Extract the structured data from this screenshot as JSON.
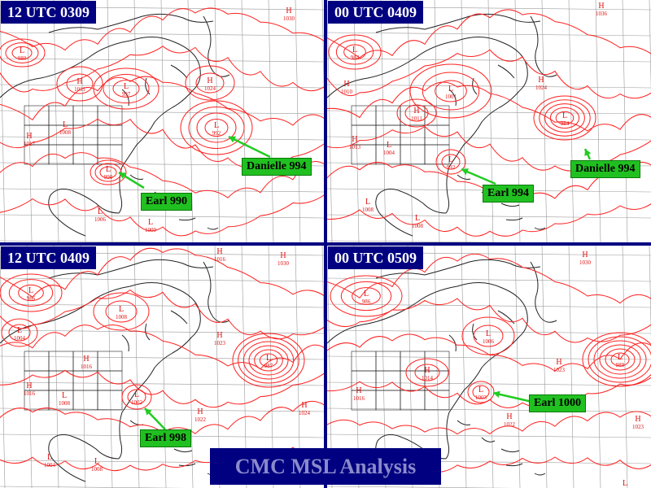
{
  "title": "CMC MSL Analysis",
  "colors": {
    "isobar": "#ff2020",
    "label_red": "#e01010",
    "frame": "#000080",
    "callout": "#21c021",
    "arrow": "#22cc22",
    "coast": "#222222",
    "grid": "#999999"
  },
  "panels": [
    {
      "id": "p1",
      "time_label": "12 UTC 0309",
      "pressure_centers": [
        {
          "type": "L",
          "value": "980"
        },
        {
          "type": "H",
          "value": "1011"
        },
        {
          "type": "L",
          "value": "997"
        },
        {
          "type": "H",
          "value": "1024"
        },
        {
          "type": "H",
          "value": "1030"
        },
        {
          "type": "L",
          "value": "992"
        },
        {
          "type": "L",
          "value": "1008"
        },
        {
          "type": "H",
          "value": "1017"
        },
        {
          "type": "L",
          "value": "990"
        },
        {
          "type": "L",
          "value": "1006"
        },
        {
          "type": "L",
          "value": "1009"
        }
      ],
      "storms": [
        {
          "name": "Danielle 994"
        },
        {
          "name": "Earl 990"
        }
      ]
    },
    {
      "id": "p2",
      "time_label": "00 UTC 0409",
      "pressure_centers": [
        {
          "type": "H",
          "value": "1036"
        },
        {
          "type": "L",
          "value": "984"
        },
        {
          "type": "H",
          "value": "1010"
        },
        {
          "type": "L",
          "value": "1001"
        },
        {
          "type": "H",
          "value": "1024"
        },
        {
          "type": "H",
          "value": "1011"
        },
        {
          "type": "L",
          "value": "984"
        },
        {
          "type": "H",
          "value": "1013"
        },
        {
          "type": "L",
          "value": "1004"
        },
        {
          "type": "L",
          "value": "992"
        },
        {
          "type": "L",
          "value": "1008"
        },
        {
          "type": "L",
          "value": "1008"
        }
      ],
      "storms": [
        {
          "name": "Danielle 994"
        },
        {
          "name": "Earl 994"
        }
      ]
    },
    {
      "id": "p3",
      "time_label": "12 UTC 0409",
      "pressure_centers": [
        {
          "type": "H",
          "value": "1016"
        },
        {
          "type": "H",
          "value": "1030"
        },
        {
          "type": "L",
          "value": "986"
        },
        {
          "type": "L",
          "value": "1008"
        },
        {
          "type": "L",
          "value": "1004"
        },
        {
          "type": "H",
          "value": "1023"
        },
        {
          "type": "L",
          "value": "987"
        },
        {
          "type": "H",
          "value": "1016"
        },
        {
          "type": "H",
          "value": "1016"
        },
        {
          "type": "L",
          "value": "1008"
        },
        {
          "type": "L",
          "value": "1002"
        },
        {
          "type": "H",
          "value": "1022"
        },
        {
          "type": "H",
          "value": "1024"
        },
        {
          "type": "L",
          "value": "1004"
        },
        {
          "type": "L",
          "value": "1008"
        }
      ],
      "storms": [
        {
          "name": "Earl 998"
        }
      ]
    },
    {
      "id": "p4",
      "time_label": "00 UTC 0509",
      "pressure_centers": [
        {
          "type": "H",
          "value": "1030"
        },
        {
          "type": "L",
          "value": "986"
        },
        {
          "type": "L",
          "value": "1006"
        },
        {
          "type": "H",
          "value": "1023"
        },
        {
          "type": "L",
          "value": "989"
        },
        {
          "type": "H",
          "value": "1014"
        },
        {
          "type": "H",
          "value": "1016"
        },
        {
          "type": "L",
          "value": "1003"
        },
        {
          "type": "H",
          "value": "1022"
        },
        {
          "type": "H",
          "value": "1023"
        },
        {
          "type": "L",
          "value": ""
        }
      ],
      "storms": [
        {
          "name": "Earl 1000"
        }
      ]
    }
  ]
}
